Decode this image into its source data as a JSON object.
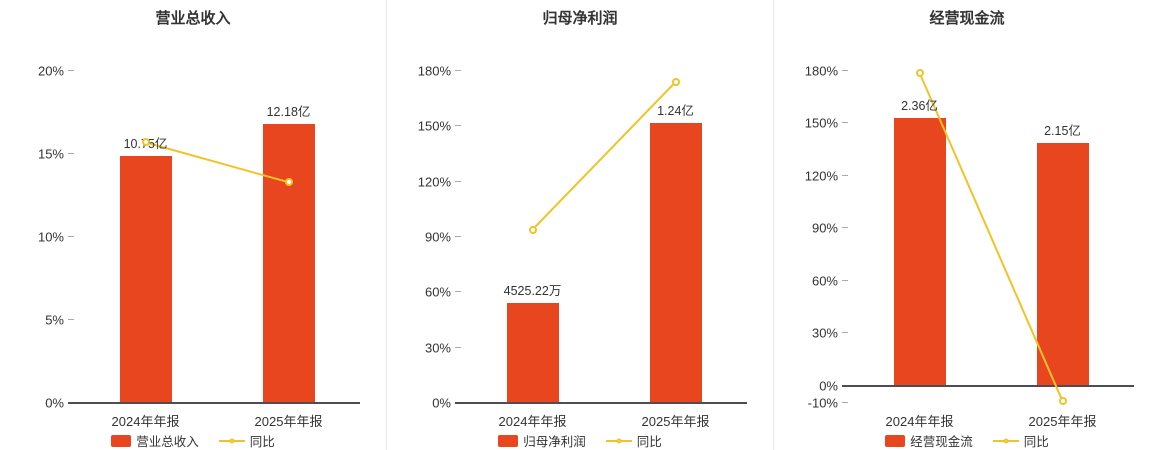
{
  "page": {
    "background": "#ffffff"
  },
  "colors": {
    "bar": "#e8461f",
    "line": "#f2c327",
    "axis": "#4d4d56",
    "text": "#333333",
    "divider": "#e8e8e8"
  },
  "chart_data": [
    {
      "type": "bar+line",
      "title": "营业总收入",
      "categories": [
        "2024年年报",
        "2025年年报"
      ],
      "bar_series": {
        "name": "营业总收入",
        "display_labels": [
          "10.75亿",
          "12.18亿"
        ],
        "plotted_pct": [
          14.9,
          16.8
        ]
      },
      "line_series": {
        "name": "同比",
        "values_pct": [
          15.7,
          13.3
        ]
      },
      "ylim": [
        0,
        20
      ],
      "yticks": [
        0,
        5,
        10,
        15,
        20
      ],
      "ytick_suffix": "%",
      "legend": [
        "营业总收入",
        "同比"
      ],
      "legend_position": "bottom"
    },
    {
      "type": "bar+line",
      "title": "归母净利润",
      "categories": [
        "2024年年报",
        "2025年年报"
      ],
      "bar_series": {
        "name": "归母净利润",
        "display_labels": [
          "4525.22万",
          "1.24亿"
        ],
        "plotted_pct": [
          54,
          152
        ]
      },
      "line_series": {
        "name": "同比",
        "values_pct": [
          94,
          174
        ]
      },
      "ylim": [
        0,
        180
      ],
      "yticks": [
        0,
        30,
        60,
        90,
        120,
        150,
        180
      ],
      "ytick_suffix": "%",
      "legend": [
        "归母净利润",
        "同比"
      ],
      "legend_position": "bottom"
    },
    {
      "type": "bar+line",
      "title": "经营现金流",
      "categories": [
        "2024年年报",
        "2025年年报"
      ],
      "bar_series": {
        "name": "经营现金流",
        "display_labels": [
          "2.36亿",
          "2.15亿"
        ],
        "plotted_pct": [
          153,
          139
        ]
      },
      "line_series": {
        "name": "同比",
        "values_pct": [
          179,
          -8.9
        ]
      },
      "ylim": [
        -10,
        180
      ],
      "yticks": [
        -10,
        0,
        30,
        60,
        90,
        120,
        150,
        180
      ],
      "ytick_suffix": "%",
      "legend": [
        "经营现金流",
        "同比"
      ],
      "legend_position": "bottom"
    }
  ]
}
